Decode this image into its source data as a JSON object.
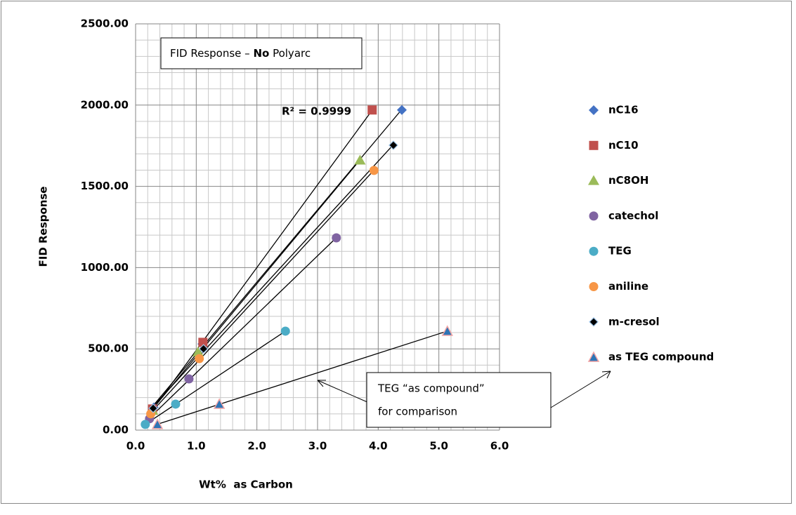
{
  "chart_data": {
    "type": "scatter",
    "title": {
      "before": "FID Response – ",
      "bold": "No",
      "after": " Polyarc"
    },
    "annotation": "R² = 0.9999",
    "callout": [
      "TEG “as compound”",
      "for comparison"
    ],
    "x_label": "Wt%  as Carbon",
    "y_label": "FID Response",
    "xlim": [
      0,
      6
    ],
    "ylim": [
      0,
      2500
    ],
    "xticks": [
      {
        "value": 0,
        "label": "0.0"
      },
      {
        "value": 1,
        "label": "1.0"
      },
      {
        "value": 2,
        "label": "2.0"
      },
      {
        "value": 3,
        "label": "3.0"
      },
      {
        "value": 4,
        "label": "4.0"
      },
      {
        "value": 5,
        "label": "5.0"
      },
      {
        "value": 6,
        "label": "6.0"
      }
    ],
    "yticks": [
      {
        "value": 0,
        "label": "0.00"
      },
      {
        "value": 500,
        "label": "500.00"
      },
      {
        "value": 1000,
        "label": "1000.00"
      },
      {
        "value": 1500,
        "label": "1500.00"
      },
      {
        "value": 2000,
        "label": "2000.00"
      },
      {
        "value": 2500,
        "label": "2500.00"
      }
    ],
    "x_minor_grid": [
      0.2,
      0.4,
      0.6,
      0.8,
      1.2,
      1.4,
      1.6,
      1.8,
      2.2,
      2.4,
      2.6,
      2.8,
      3.2,
      3.4,
      3.6,
      3.8,
      4.2,
      4.4,
      4.6,
      4.8,
      5.2,
      5.4,
      5.6,
      5.8
    ],
    "y_minor_grid": [
      100,
      200,
      300,
      400,
      600,
      700,
      800,
      900,
      1100,
      1200,
      1300,
      1400,
      1600,
      1700,
      1800,
      1900,
      2100,
      2200,
      2300,
      2400
    ],
    "grid": true,
    "trendline": true,
    "legend": "right",
    "series": [
      {
        "name": "nC16",
        "color": "#4472c4",
        "marker": "diamond",
        "x": [
          0.3,
          1.1,
          4.39
        ],
        "values": [
          140,
          530,
          1970
        ]
      },
      {
        "name": "nC10",
        "color": "#c0504d",
        "marker": "square",
        "x": [
          0.28,
          1.11,
          3.9
        ],
        "values": [
          130,
          540,
          1970
        ]
      },
      {
        "name": "nC8OH",
        "color": "#9bbb59",
        "marker": "triangle",
        "x": [
          0.28,
          1.03,
          3.7
        ],
        "values": [
          120,
          480,
          1660
        ]
      },
      {
        "name": "catechol",
        "color": "#8064a2",
        "marker": "circle",
        "x": [
          0.23,
          0.88,
          3.31
        ],
        "values": [
          70,
          315,
          1183
        ]
      },
      {
        "name": "TEG",
        "color": "#4bacc6",
        "marker": "circle",
        "x": [
          0.16,
          0.66,
          2.47
        ],
        "values": [
          35,
          160,
          609
        ]
      },
      {
        "name": "aniline",
        "color": "#f79646",
        "marker": "circle",
        "x": [
          0.25,
          1.05,
          3.93
        ],
        "values": [
          100,
          440,
          1598
        ]
      },
      {
        "name": "m-cresol",
        "color": "#000000",
        "marker": "diamond-small",
        "x": [
          0.29,
          1.12,
          4.25
        ],
        "values": [
          134,
          500,
          1753
        ]
      },
      {
        "name": "as TEG compound",
        "color": "#2e75b6",
        "marker": "triangle-outlined",
        "x": [
          0.36,
          1.38,
          5.14
        ],
        "values": [
          35,
          160,
          609
        ]
      }
    ]
  }
}
